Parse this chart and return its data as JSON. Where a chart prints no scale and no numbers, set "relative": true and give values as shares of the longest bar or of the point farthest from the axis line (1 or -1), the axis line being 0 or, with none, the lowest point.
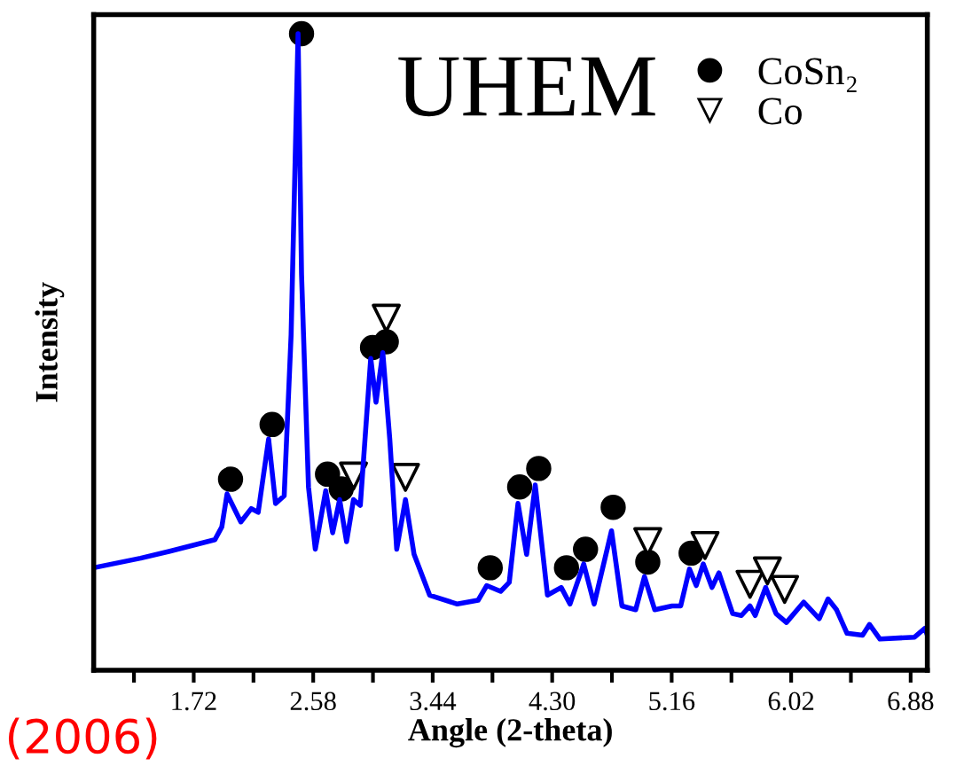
{
  "chart_data": {
    "type": "line",
    "relative": true,
    "xlabel": "Angle (2-theta)",
    "ylabel": "Intensity",
    "annotations": [
      "UHEM",
      "(2006)"
    ],
    "xlim": [
      1.0,
      7.0
    ],
    "xticks": [
      {
        "value": 1.29,
        "label": null
      },
      1.72,
      {
        "value": 2.15,
        "label": null
      },
      2.58,
      {
        "value": 3.01,
        "label": null
      },
      3.44,
      {
        "value": 3.87,
        "label": null
      },
      {
        "value": 4.3,
        "label": "4.30"
      },
      {
        "value": 4.73,
        "label": null
      },
      5.16,
      {
        "value": 5.59,
        "label": null
      },
      6.02,
      {
        "value": 6.45,
        "label": null
      },
      6.88
    ],
    "legend": "top right",
    "grid": false,
    "series": [
      {
        "color": "#0000ff",
        "marker": "none",
        "x": [
          1.0,
          1.337,
          1.548,
          1.872,
          1.922,
          1.96,
          2.059,
          2.134,
          2.184,
          2.259,
          2.309,
          2.371,
          2.421,
          2.471,
          2.496,
          2.546,
          2.595,
          2.67,
          2.72,
          2.77,
          2.82,
          2.87,
          2.919,
          2.994,
          3.032,
          3.081,
          3.131,
          3.181,
          3.244,
          3.306,
          3.418,
          3.617,
          3.767,
          3.829,
          3.929,
          3.991,
          4.054,
          4.116,
          4.178,
          4.266,
          4.365,
          4.428,
          4.527,
          4.602,
          4.727,
          4.802,
          4.901,
          4.964,
          5.038,
          5.163,
          5.225,
          5.288,
          5.337,
          5.387,
          5.45,
          5.5,
          5.599,
          5.662,
          5.724,
          5.761,
          5.836,
          5.911,
          5.986,
          6.11,
          6.222,
          6.285,
          6.347,
          6.422,
          6.534,
          6.584,
          6.659,
          6.908,
          6.983,
          7.0
        ],
        "values": [
          0.161,
          0.176,
          0.187,
          0.205,
          0.225,
          0.277,
          0.233,
          0.254,
          0.248,
          0.363,
          0.262,
          0.274,
          0.527,
          1.0,
          0.622,
          0.288,
          0.19,
          0.282,
          0.216,
          0.268,
          0.202,
          0.268,
          0.259,
          0.49,
          0.421,
          0.499,
          0.363,
          0.19,
          0.268,
          0.182,
          0.118,
          0.104,
          0.11,
          0.133,
          0.124,
          0.138,
          0.262,
          0.182,
          0.291,
          0.118,
          0.13,
          0.104,
          0.167,
          0.104,
          0.219,
          0.101,
          0.095,
          0.147,
          0.095,
          0.101,
          0.101,
          0.159,
          0.133,
          0.167,
          0.13,
          0.153,
          0.089,
          0.086,
          0.101,
          0.086,
          0.13,
          0.089,
          0.075,
          0.107,
          0.081,
          0.112,
          0.095,
          0.058,
          0.055,
          0.072,
          0.049,
          0.052,
          0.066,
          0.055
        ]
      },
      {
        "type": "scatter",
        "name": "CoSn₂",
        "color": "#000000",
        "marker": "circle",
        "x": [
          1.985,
          2.284,
          2.496,
          2.683,
          2.782,
          3.007,
          3.106,
          3.854,
          4.066,
          4.203,
          4.403,
          4.54,
          4.739,
          4.988,
          5.3
        ],
        "values": [
          0.3,
          0.386,
          1.0,
          0.308,
          0.285,
          0.507,
          0.516,
          0.161,
          0.288,
          0.317,
          0.161,
          0.19,
          0.256,
          0.17,
          0.184
        ]
      },
      {
        "type": "scatter",
        "name": "Co",
        "color": "#000000",
        "marker": "triangle",
        "x": [
          2.87,
          3.106,
          3.244,
          4.988,
          5.4,
          5.724,
          5.849,
          5.973
        ],
        "values": [
          0.305,
          0.553,
          0.303,
          0.202,
          0.196,
          0.135,
          0.156,
          0.127
        ]
      }
    ]
  }
}
